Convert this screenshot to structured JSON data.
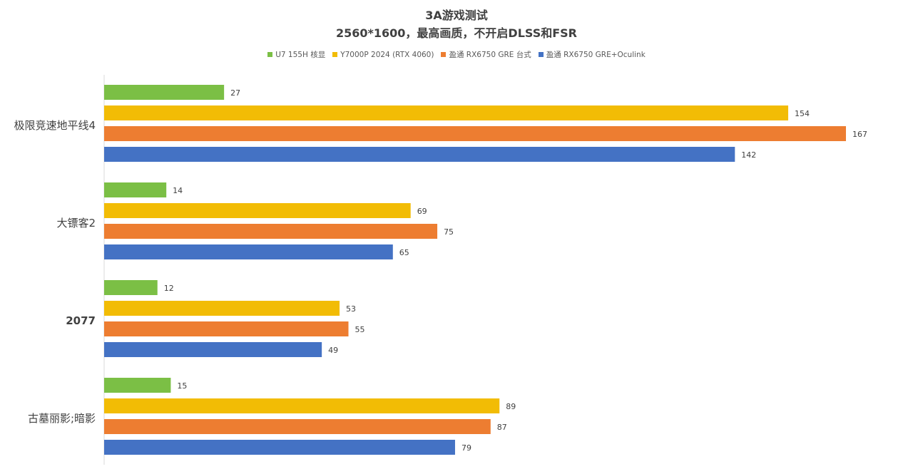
{
  "chart_data": {
    "type": "bar",
    "orientation": "horizontal",
    "title": "3A游戏测试",
    "subtitle": "2560*1600，最高画质，不开启DLSS和FSR",
    "categories": [
      "极限竞速地平线4",
      "大镖客2",
      "2077",
      "古墓丽影;暗影"
    ],
    "series": [
      {
        "name": "U7 155H 核显",
        "color": "#7BBF45",
        "values": [
          27,
          14,
          12,
          15
        ]
      },
      {
        "name": "Y7000P 2024 (RTX 4060)",
        "color": "#F2BC05",
        "values": [
          154,
          69,
          53,
          89
        ]
      },
      {
        "name": "盈通 RX6750 GRE 台式",
        "color": "#ED7D31",
        "values": [
          167,
          75,
          55,
          87
        ]
      },
      {
        "name": "盈通 RX6750 GRE+Oculink",
        "color": "#4472C4",
        "values": [
          142,
          65,
          49,
          79
        ]
      }
    ],
    "xlim": [
      0,
      180
    ],
    "grid": false,
    "legend_position": "top"
  }
}
